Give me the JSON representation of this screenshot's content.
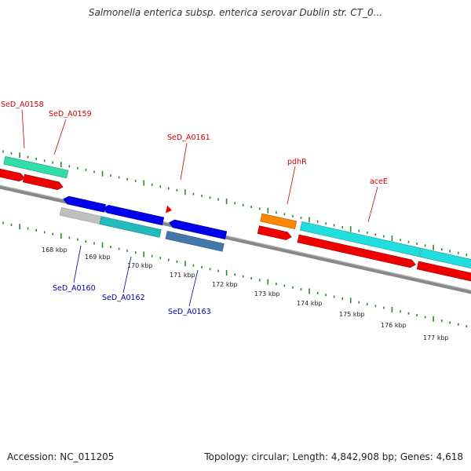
{
  "title": "Salmonella enterica subsp. enterica serovar Dublin str. CT_0...",
  "footer": {
    "accession": "Accession: NC_011205",
    "stats": "Topology: circular; Length: 4,842,908 bp; Genes: 4,618"
  },
  "colors": {
    "plus_label": "#cc0000",
    "minus_label": "#0000aa",
    "backbone": "#888888",
    "tick": "#2a8a2a"
  },
  "scale_labels": [
    "168 kbp",
    "169 kbp",
    "170 kbp",
    "171 kbp",
    "172 kbp",
    "173 kbp",
    "174 kbp",
    "175 kbp",
    "176 kbp",
    "177 kbp"
  ],
  "gene_labels": [
    {
      "text": "SeD_A0158",
      "strand": "plus"
    },
    {
      "text": "SeD_A0159",
      "strand": "plus"
    },
    {
      "text": "SeD_A0161",
      "strand": "plus"
    },
    {
      "text": "pdhR",
      "strand": "plus"
    },
    {
      "text": "aceE",
      "strand": "plus"
    },
    {
      "text": "SeD_A0160",
      "strand": "minus"
    },
    {
      "text": "SeD_A0162",
      "strand": "minus"
    },
    {
      "text": "SeD_A0163",
      "strand": "minus"
    }
  ],
  "feature_colors": {
    "cds_plus": "#ee0000",
    "cds_minus": "#0000ee",
    "gene_teal": "#33ddaa",
    "gene_cyan": "#22dddd",
    "gene_orange": "#ff8800",
    "gene_gray": "#c0c0c0",
    "gene_steel": "#4477aa",
    "gene_darkcyan": "#22bbbb"
  }
}
